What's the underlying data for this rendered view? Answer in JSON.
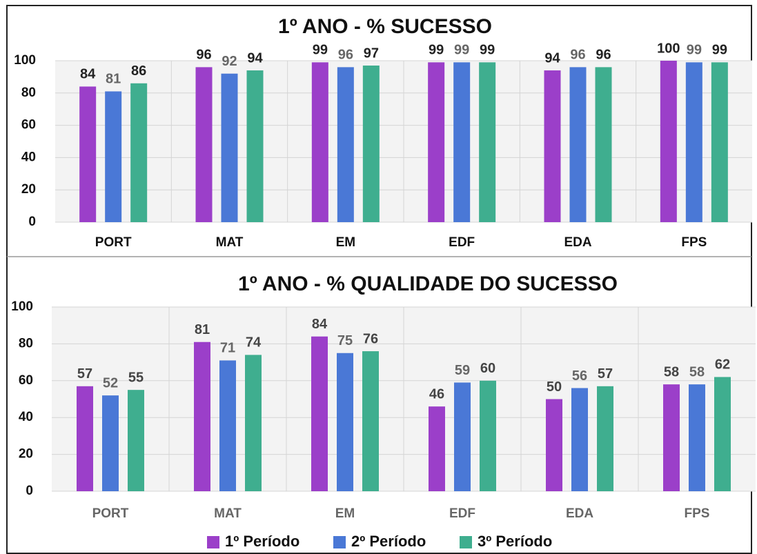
{
  "chart_data": [
    {
      "type": "bar",
      "title": "1º ANO - % SUCESSO",
      "categories": [
        "PORT",
        "MAT",
        "EM",
        "EDF",
        "EDA",
        "FPS"
      ],
      "series": [
        {
          "color": "#9b3fc9",
          "values": [
            84,
            96,
            99,
            99,
            94,
            100
          ]
        },
        {
          "color": "#4a78d6",
          "values": [
            81,
            92,
            96,
            99,
            96,
            99
          ]
        },
        {
          "color": "#3fae8f",
          "values": [
            86,
            94,
            97,
            99,
            96,
            99
          ]
        }
      ],
      "ylim": [
        0,
        100
      ],
      "yticks": [
        0,
        20,
        40,
        60,
        80,
        100
      ],
      "grid": true,
      "legend": false
    },
    {
      "type": "bar",
      "title": "1º ANO - % QUALIDADE DO SUCESSO",
      "categories": [
        "PORT",
        "MAT",
        "EM",
        "EDF",
        "EDA",
        "FPS"
      ],
      "series": [
        {
          "name": "1º Período",
          "color": "#9b3fc9",
          "values": [
            57,
            81,
            84,
            46,
            50,
            58
          ]
        },
        {
          "name": "2º Período",
          "color": "#4a78d6",
          "values": [
            52,
            71,
            75,
            59,
            56,
            58
          ]
        },
        {
          "name": "3º Período",
          "color": "#3fae8f",
          "values": [
            55,
            74,
            76,
            60,
            57,
            62
          ]
        }
      ],
      "ylim": [
        0,
        100
      ],
      "yticks": [
        0,
        20,
        40,
        60,
        80,
        100
      ],
      "grid": true,
      "legend": "bottom"
    }
  ]
}
